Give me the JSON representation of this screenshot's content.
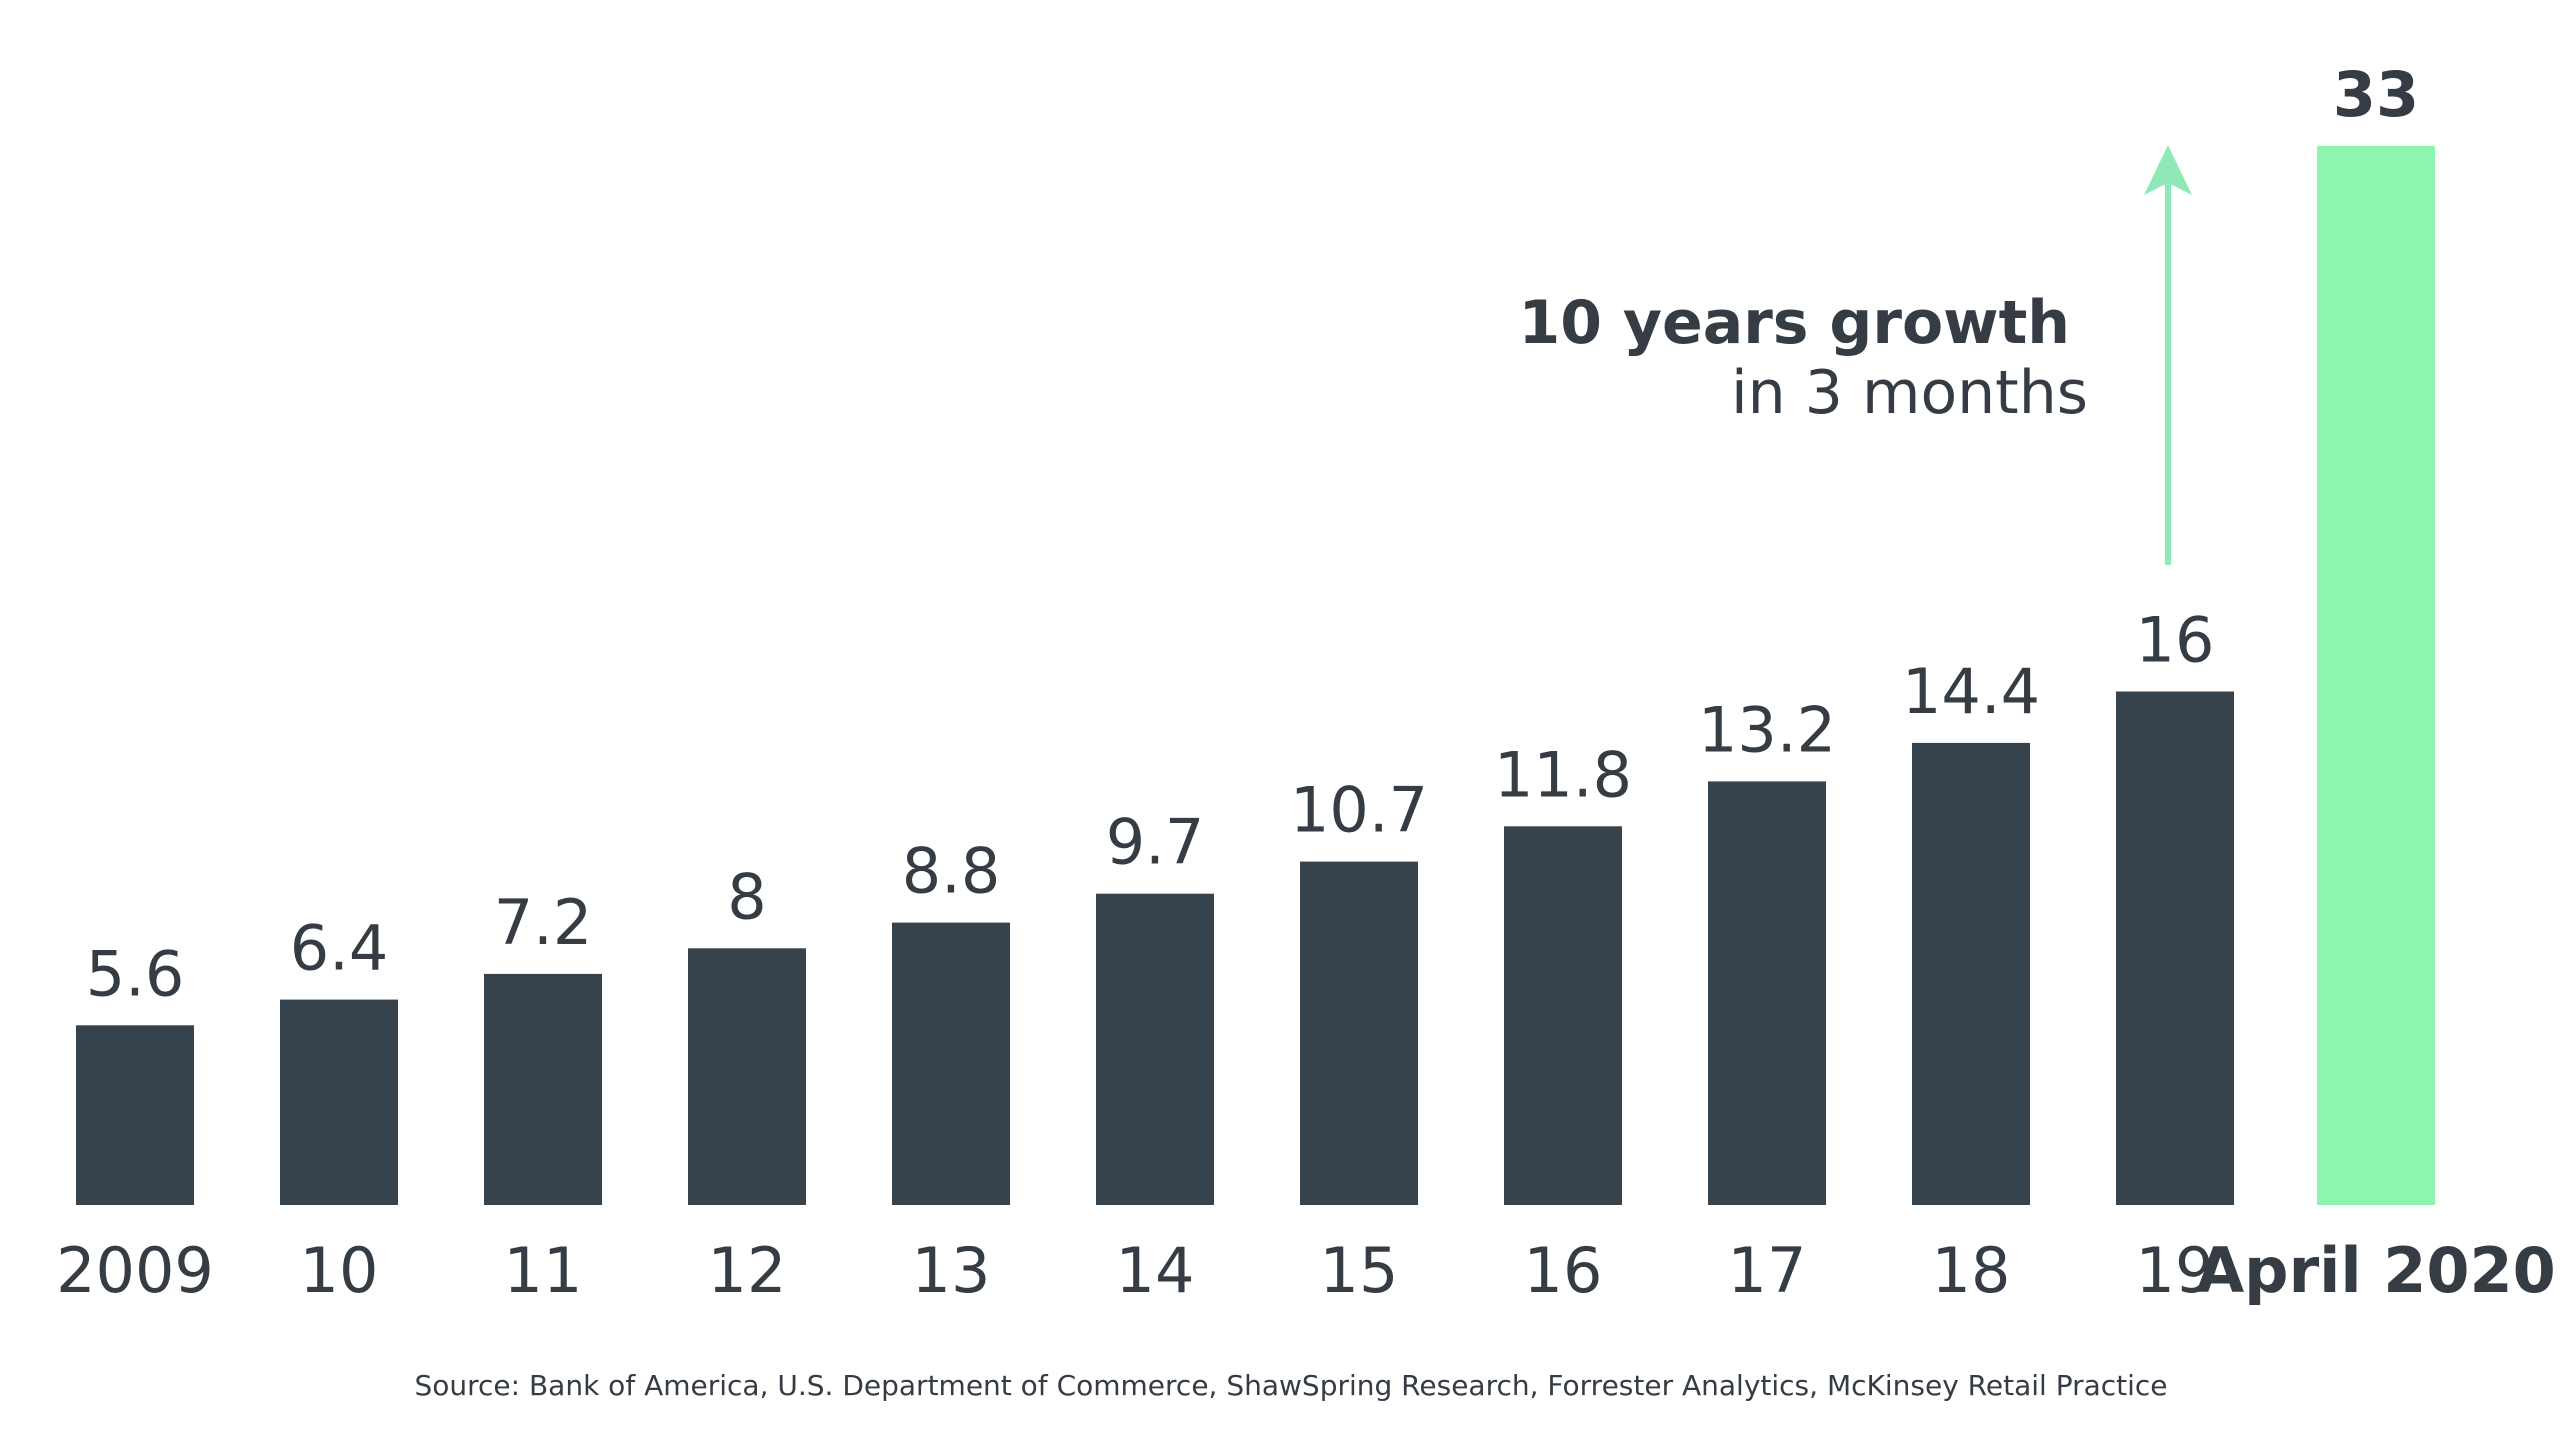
{
  "chart_data": {
    "type": "bar",
    "categories": [
      "2009",
      "10",
      "11",
      "12",
      "13",
      "14",
      "15",
      "16",
      "17",
      "18",
      "19",
      "April 2020"
    ],
    "values": [
      5.6,
      6.4,
      7.2,
      8,
      8.8,
      9.7,
      10.7,
      11.8,
      13.2,
      14.4,
      16,
      33
    ],
    "value_labels": [
      "5.6",
      "6.4",
      "7.2",
      "8",
      "8.8",
      "9.7",
      "10.7",
      "11.8",
      "13.2",
      "14.4",
      "16",
      "33"
    ],
    "highlight_index": 11,
    "title": "",
    "xlabel": "",
    "ylabel": "",
    "ylim": [
      0,
      33
    ],
    "grid": false,
    "legend": "none",
    "annotation": {
      "line1": "10 years growth",
      "line2": "in 3 months",
      "arrow": "up"
    },
    "source": "Source: Bank of America, U.S. Department of Commerce, ShawSpring Research, Forrester Analytics, McKinsey Retail Practice"
  },
  "colors": {
    "bar": "#36434d",
    "highlight_bar": "#8cf5b0",
    "arrow": "#8fe9b6",
    "text": "#363c44",
    "background": "#ffffff"
  }
}
